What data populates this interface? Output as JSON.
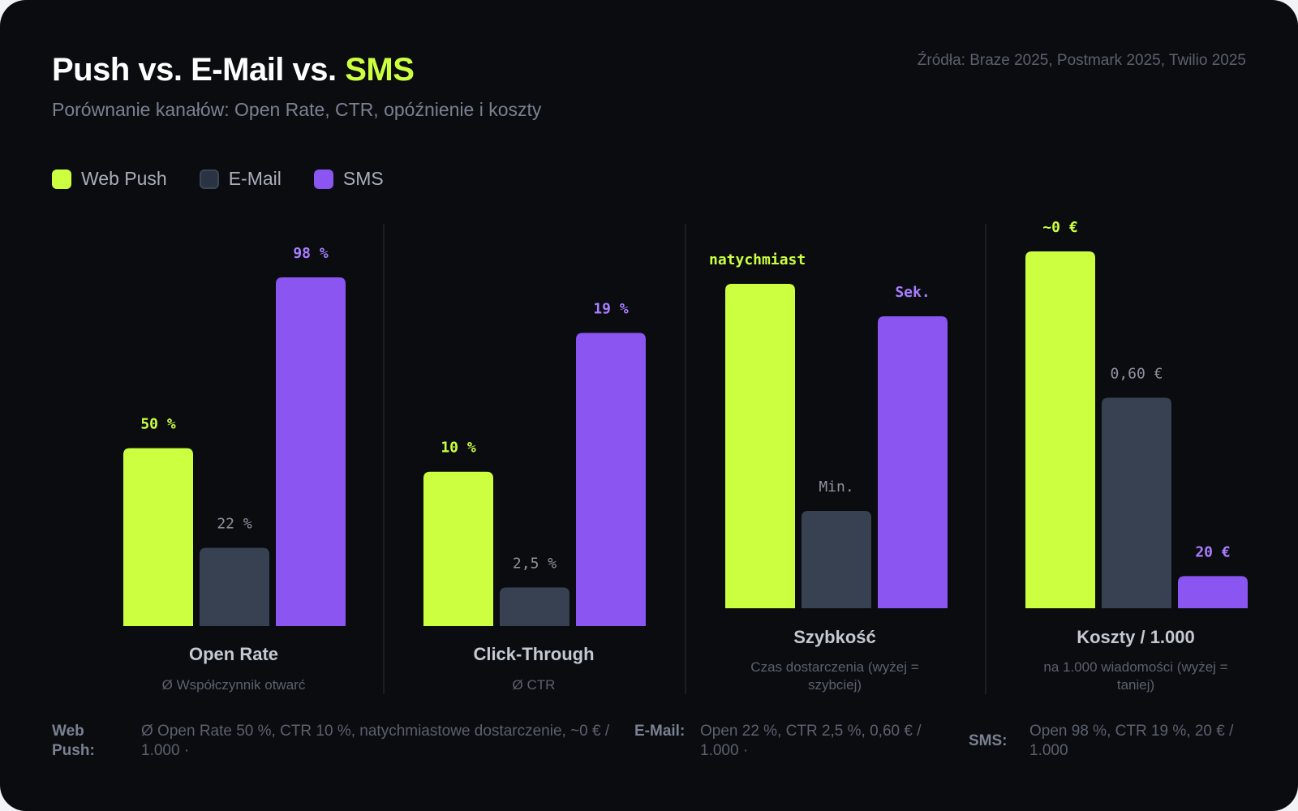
{
  "header": {
    "title_main": "Push vs. E-Mail vs. ",
    "title_highlight": "SMS",
    "subtitle": "Porównanie kanałów: Open Rate, CTR, opóźnienie i koszty",
    "sources": "Źródła: Braze 2025, Postmark 2025, Twilio 2025"
  },
  "legend": [
    {
      "label": "Web Push",
      "color": "#ccff3f"
    },
    {
      "label": "E-Mail",
      "color": "#2a3341"
    },
    {
      "label": "SMS",
      "color": "#8b55f1"
    }
  ],
  "chart_data": {
    "type": "bar",
    "series_names": [
      "Web Push",
      "E-Mail",
      "SMS"
    ],
    "colors": [
      "#ccff3f",
      "#374151",
      "#8b55f1"
    ],
    "label_colors": [
      "#ccff3f",
      "#8d939e",
      "#a87dff"
    ],
    "groups": [
      {
        "category": "Open Rate",
        "note": "Ø Współczynnik otwarć",
        "values": [
          50,
          22,
          98
        ],
        "labels": [
          "50 %",
          "22 %",
          "98 %"
        ]
      },
      {
        "category": "Click-Through",
        "note": "Ø CTR",
        "values": [
          10,
          2.5,
          19
        ],
        "labels": [
          "10 %",
          "2,5 %",
          "19 %"
        ]
      },
      {
        "category": "Szybkość",
        "note": "Czas dostarczenia (wyżej = szybciej)",
        "values": [
          100,
          30,
          90
        ],
        "labels": [
          "natychmiast",
          "Min.",
          "Sek."
        ]
      },
      {
        "category": "Koszty / 1.000",
        "note": "na 1.000 wiadomości (wyżej = taniej)",
        "values": [
          100,
          59,
          9
        ],
        "labels": [
          "~0 €",
          "0,60 €",
          "20 €"
        ]
      }
    ]
  },
  "footer": [
    {
      "label": "Web Push:",
      "text": "Ø Open Rate 50 %, CTR 10 %, natychmiastowe dostarczenie, ~0 € / 1.000  ·"
    },
    {
      "label": "E-Mail:",
      "text": "Open 22 %, CTR 2,5 %, 0,60 € / 1.000  ·"
    },
    {
      "label": "SMS:",
      "text": "Open 98 %, CTR 19 %, 20 € / 1.000"
    }
  ]
}
